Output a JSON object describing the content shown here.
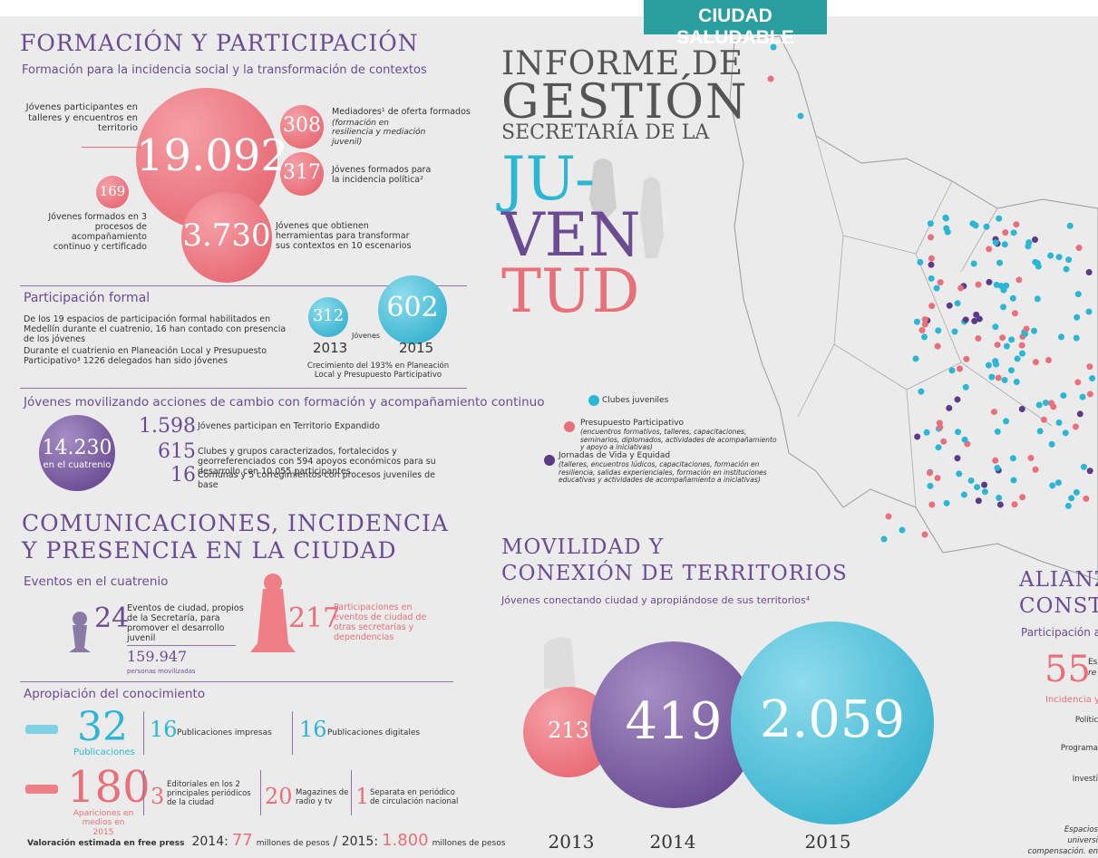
{
  "banner": "CIUDAD SALUDABLE",
  "formacion": {
    "title": "FORMACIÓN Y PARTICIPACIÓN",
    "subtitle": "Formación para la incidencia social y la transformación de contextos",
    "items": [
      {
        "value": "19.092",
        "label": "Jóvenes participantes en talleres y encuentros en territorio"
      },
      {
        "value": "308",
        "label": "Mediadores¹ de oferta formados",
        "note": "(formación en resiliencia y mediación juvenil)"
      },
      {
        "value": "317",
        "label": "Jóvenes formados para la incidencia política²"
      },
      {
        "value": "169",
        "label": "Jóvenes formados en 3 procesos de acompañamiento continuo y certificado"
      },
      {
        "value": "3.730",
        "label": "Jóvenes que obtienen herramientas para transformar sus contextos en 10 escenarios"
      }
    ]
  },
  "participacion": {
    "title": "Participación formal",
    "text1": "De los 19 espacios de participación formal habilitados en Medellín durante el cuatrenio, 16 han contado con presencia de los jóvenes",
    "text2": "Durante el cuatrienio en Planeación Local y Presupuesto Participativo³ 1226 delegados han sido jóvenes",
    "v2013": "312",
    "v2015": "602",
    "y2013": "2013",
    "y2015": "2015",
    "mid": "Jóvenes",
    "growth": "Crecimiento del 193% en Planeación Local y Presupuesto Participativo"
  },
  "movilizando": {
    "title": "Jóvenes movilizando acciones de cambio con formación y acompañamiento continuo",
    "total": "14.230",
    "total_label": "en el cuatrenio",
    "rows": [
      {
        "value": "1.598",
        "label": "Jóvenes participan en Territorio Expandido"
      },
      {
        "value": "615",
        "label": "Clubes y grupos caracterizados, fortalecidos y georreferenciados con 594 apoyos económicos para su desarrollo con 10.055 participantes"
      },
      {
        "value": "16",
        "label": "Comunas y 5 corregimientos con procesos juveniles de base"
      }
    ]
  },
  "comunicaciones": {
    "title_lines": [
      "COMUNICACIONES, INCIDENCIA",
      "Y PRESENCIA EN LA CIUDAD"
    ],
    "eventos_title": "Eventos en el cuatrenio",
    "e1_value": "24",
    "e1_label": "Eventos de ciudad, propios de la Secretaría, para promover el desarrollo juvenil",
    "e2_value": "217",
    "e2_label": "Participaciones en eventos de ciudad de otras secretarías y dependencias",
    "people_value": "159.947",
    "people_label": "personas movilizadas",
    "apropiacion_title": "Apropiación del conocimiento",
    "pub_value": "32",
    "pub_label": "Publicaciones",
    "pub_print_value": "16",
    "pub_print_label": "Publicaciones impresas",
    "pub_digital_value": "16",
    "pub_digital_label": "Publicaciones digitales",
    "media_value": "180",
    "media_label": "Apariciones en medios en 2015",
    "editorial_value": "3",
    "editorial_label": "Editoriales en los 2 principales periódicos de la ciudad",
    "magazine_value": "20",
    "magazine_label": "Magazines de radio y tv",
    "separata_value": "1",
    "separata_label": "Separata en periódico de circulación nacional",
    "freepress_label": "Valoración estimada en free press",
    "fp2014": "2014:",
    "fp2014_value": "77",
    "fp_unit": "millones de pesos",
    "fp2015": "/ 2015:",
    "fp2015_value": "1.800"
  },
  "informe": {
    "lines": [
      "INFORME DE",
      "GESTIÓN",
      "SECRETARÍA DE LA"
    ],
    "ju": [
      "JU-",
      "VEN",
      "TUD"
    ]
  },
  "legend": [
    {
      "label": "Clubes juveniles",
      "color": "#2bb6d3"
    },
    {
      "label": "Presupuesto Participativo",
      "note": "(encuentros formativos, talleres, capacitaciones, seminarios, diplomados, actividades de acompañamiento y apoyo a iniciativas)",
      "color": "#e8707a"
    },
    {
      "label": "Jornadas de Vida y Equidad",
      "note": "(talleres, encuentros lúdicos, capacitaciones, formación en resiliencia, salidas experienciales, formación en instituciones educativas y actividades de acompañamiento a iniciativas)",
      "color": "#5b3a86"
    }
  ],
  "movilidad": {
    "title_lines": [
      "MOVILIDAD Y",
      "CONEXIÓN DE TERRITORIOS"
    ],
    "subtitle": "Jóvenes conectando ciudad y apropiándose de sus territorios⁴",
    "bubbles": [
      {
        "year": "2013",
        "value": "213"
      },
      {
        "year": "2014",
        "value": "419"
      },
      {
        "year": "2015",
        "value": "2.059"
      }
    ]
  },
  "alianzas": {
    "title_lines": [
      "ALIANZA",
      "CONSTR"
    ],
    "sub": "Participación a",
    "value": "55",
    "value_label": "Es",
    "value_note": "re",
    "incidencia": "Incidencia y",
    "rows": [
      "Polític",
      "Programa",
      "Investi"
    ],
    "foot": [
      "Espacios",
      "universi",
      "compensación. en"
    ]
  }
}
